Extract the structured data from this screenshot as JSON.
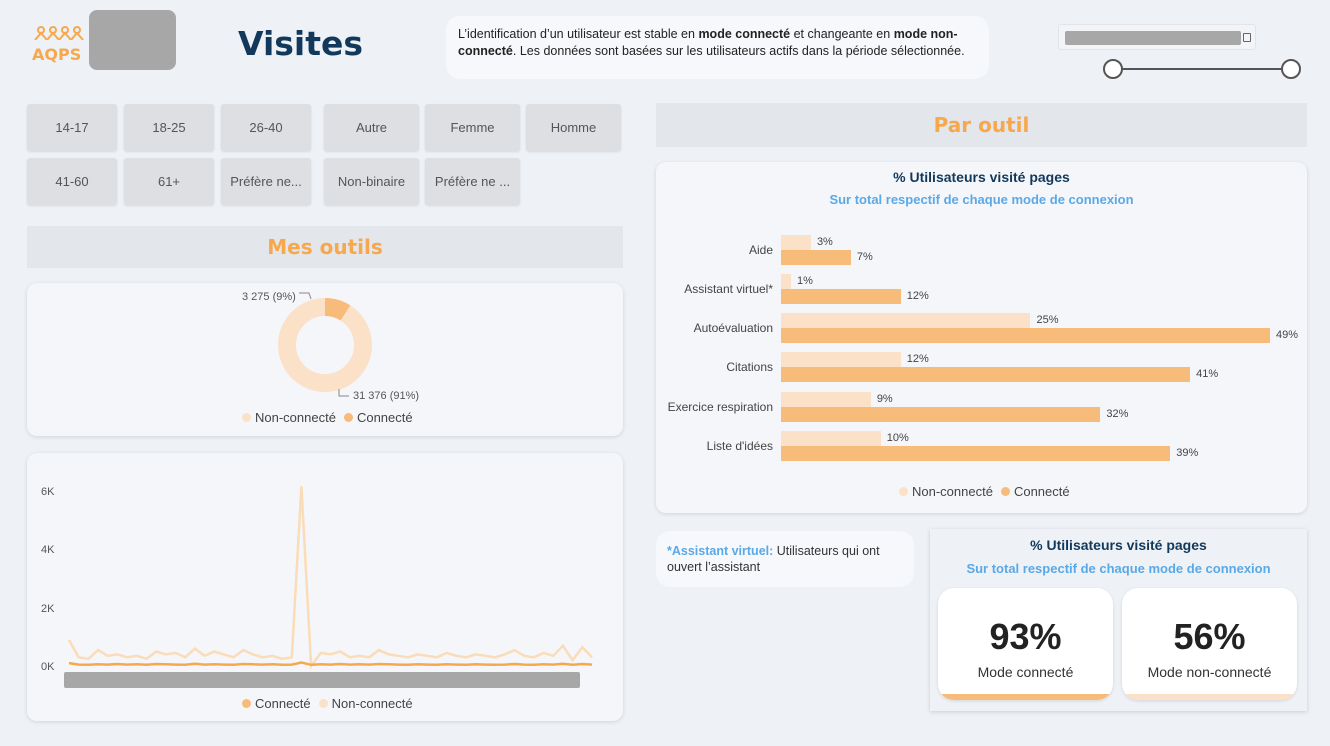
{
  "logo": {
    "text": "AQPS"
  },
  "page_title": "Visites",
  "info": {
    "part1": "L’identification d’un utilisateur est stable en ",
    "bold1": "mode connecté",
    "part2": " et changeante en ",
    "bold2": "mode non-connecté",
    "part3": ". Les données sont basées sur les utilisateurs actifs dans la période sélectionnée."
  },
  "age_filters": [
    "14-17",
    "18-25",
    "26-40",
    "41-60",
    "61+",
    "Préfère ne..."
  ],
  "gender_filters": [
    "Autre",
    "Femme",
    "Homme",
    "Non-binaire",
    "Préfère ne ..."
  ],
  "sections": {
    "left": "Mes outils",
    "right": "Par outil"
  },
  "donut": {
    "label_small": "3 275 (9%)",
    "label_large": "31 376 (91%)",
    "legend": [
      "Non-connecté",
      "Connecté"
    ]
  },
  "colors": {
    "connected": "#f7bb7a",
    "nonconnected": "#fbe1c8",
    "accent": "#f7a84d",
    "title": "#12395b",
    "subtitle": "#5aa9e6"
  },
  "line_chart": {
    "y_ticks": [
      "6K",
      "4K",
      "2K",
      "0K"
    ],
    "legend": [
      "Connecté",
      "Non-connecté"
    ],
    "nonconnected": [
      900,
      300,
      250,
      550,
      350,
      400,
      300,
      350,
      250,
      500,
      400,
      450,
      300,
      600,
      350,
      500,
      400,
      300,
      550,
      400,
      300,
      350,
      250,
      300,
      6200,
      0,
      450,
      400,
      500,
      300,
      350,
      300,
      550,
      400,
      350,
      300,
      400,
      350,
      300,
      450,
      350,
      300,
      400,
      350,
      300,
      400,
      550,
      350,
      300,
      450,
      350,
      700,
      200,
      650,
      300
    ],
    "connected": [
      100,
      50,
      40,
      60,
      50,
      70,
      50,
      60,
      40,
      70,
      60,
      50,
      40,
      80,
      50,
      60,
      50,
      40,
      70,
      60,
      50,
      60,
      40,
      50,
      120,
      40,
      60,
      50,
      70,
      50,
      60,
      50,
      70,
      60,
      50,
      40,
      60,
      50,
      40,
      60,
      50,
      40,
      60,
      50,
      40,
      50,
      70,
      50,
      40,
      60,
      50,
      80,
      40,
      70,
      50
    ]
  },
  "bar_chart": {
    "title": "% Utilisateurs visité pages",
    "subtitle": "Sur total respectif de chaque mode de connexion",
    "legend": [
      "Non-connecté",
      "Connecté"
    ]
  },
  "chart_data": {
    "type": "bar",
    "categories": [
      "Aide",
      "Assistant virtuel*",
      "Autoévaluation",
      "Citations",
      "Exercice respiration",
      "Liste d'idées"
    ],
    "series": [
      {
        "name": "Non-connecté",
        "values": [
          3,
          1,
          25,
          12,
          9,
          10
        ],
        "labels": [
          "3%",
          "1%",
          "25%",
          "12%",
          "9%",
          "10%"
        ]
      },
      {
        "name": "Connecté",
        "values": [
          7,
          12,
          49,
          41,
          32,
          39
        ],
        "labels": [
          "7%",
          "12%",
          "49%",
          "41%",
          "32%",
          "39%"
        ]
      }
    ],
    "title": "% Utilisateurs visité pages",
    "subtitle": "Sur total respectif de chaque mode de connexion",
    "xlim": [
      0,
      49
    ]
  },
  "note": {
    "bold": "*Assistant virtuel:",
    "text": " Utilisateurs qui ont ouvert l’assistant"
  },
  "kpi_panel": {
    "title": "% Utilisateurs visité pages",
    "subtitle": "Sur total respectif de chaque mode de connexion",
    "items": [
      {
        "value": "93%",
        "label": "Mode connecté"
      },
      {
        "value": "56%",
        "label": "Mode non-connecté"
      }
    ]
  }
}
